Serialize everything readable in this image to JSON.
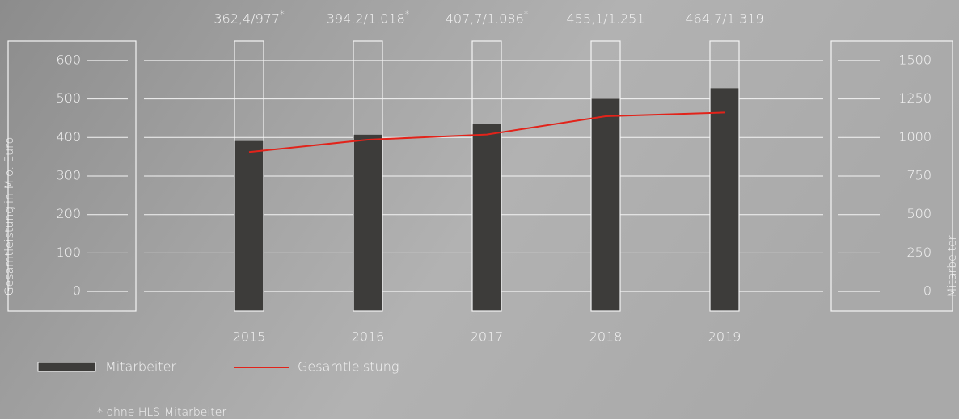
{
  "chart_data": {
    "type": "bar_line",
    "categories": [
      "2015",
      "2016",
      "2017",
      "2018",
      "2019"
    ],
    "series": [
      {
        "name": "Mitarbeiter",
        "type": "bar",
        "axis": "y2",
        "color": "#3d3c3a",
        "values": [
          977,
          1018,
          1086,
          1251,
          1319
        ]
      },
      {
        "name": "Gesamtleistung",
        "type": "line",
        "axis": "y",
        "color": "#e2231a",
        "values": [
          362.4,
          394.2,
          407.7,
          455.1,
          464.7
        ]
      }
    ],
    "data_labels": [
      "362,4/977*",
      "394,2/1.018*",
      "407,7/1.086*",
      "455,1/1.251",
      "464,7/1.319"
    ],
    "ylabel": "Gesamtleistung in Mio. Euro",
    "y2label": "Mitarbeiter",
    "ylim": [
      -50,
      650
    ],
    "yticks": [
      0,
      100,
      200,
      300,
      400,
      500,
      600
    ],
    "y2lim": [
      -125,
      1625
    ],
    "y2ticks": [
      0,
      250,
      500,
      750,
      1000,
      1250,
      1500
    ],
    "grid": true,
    "footnote": "* ohne HLS-Mitarbeiter"
  }
}
